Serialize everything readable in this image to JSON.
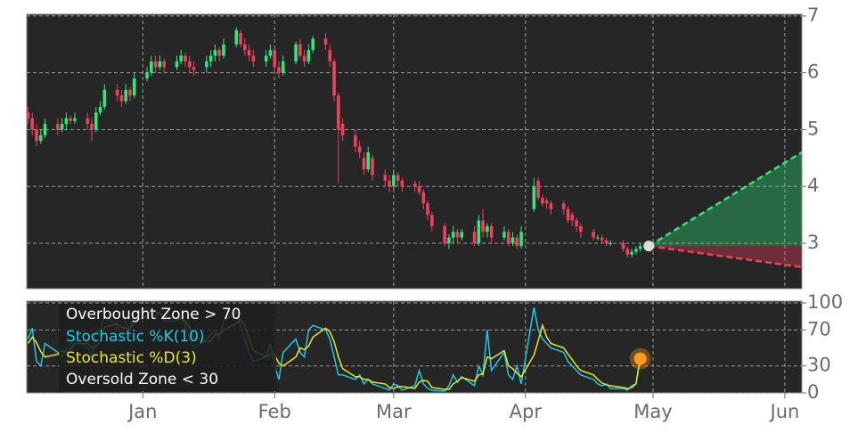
{
  "chart_data": [
    {
      "type": "candlestick",
      "x": [
        -27,
        -26,
        -25,
        -24,
        -23,
        -20,
        -19,
        -18,
        -17,
        -16,
        -13,
        -12,
        -11,
        -10,
        -9,
        -6,
        -5,
        -4,
        -3,
        -2,
        1,
        2,
        3,
        4,
        5,
        8,
        9,
        10,
        11,
        12,
        15,
        16,
        17,
        18,
        19,
        22,
        23,
        24,
        25,
        26,
        29,
        30,
        31,
        32,
        33,
        36,
        37,
        38,
        39,
        40,
        43,
        44,
        45,
        46,
        47,
        50,
        51,
        52,
        53,
        54,
        57,
        58,
        59,
        60,
        61,
        64,
        65,
        66,
        67,
        68,
        71,
        72,
        73,
        74,
        75,
        78,
        79,
        80,
        81,
        82,
        85,
        86,
        87,
        88,
        89,
        92,
        93,
        94,
        95,
        96,
        99,
        100,
        101,
        102,
        103,
        106,
        107,
        108,
        109,
        110,
        113,
        114,
        115,
        116,
        117
      ],
      "open": [
        5.3,
        5.2,
        5.0,
        4.8,
        4.9,
        5.1,
        5.0,
        5.1,
        5.2,
        5.15,
        5.2,
        5.1,
        5.0,
        5.3,
        5.4,
        5.7,
        5.6,
        5.5,
        5.7,
        5.6,
        5.9,
        6.0,
        6.2,
        6.1,
        6.2,
        6.1,
        6.2,
        6.3,
        6.2,
        6.1,
        6.1,
        6.2,
        6.3,
        6.4,
        6.3,
        6.5,
        6.7,
        6.5,
        6.4,
        6.3,
        6.2,
        6.3,
        6.4,
        6.1,
        6.0,
        6.2,
        6.5,
        6.3,
        6.2,
        6.4,
        6.6,
        6.4,
        6.2,
        5.6,
        5.1,
        4.9,
        4.7,
        4.5,
        4.3,
        4.5,
        4.2,
        4.1,
        4.0,
        4.2,
        4.1,
        4.05,
        4.0,
        3.9,
        3.7,
        3.5,
        3.3,
        3.0,
        3.1,
        3.2,
        3.1,
        3.2,
        3.0,
        3.4,
        3.2,
        3.3,
        3.1,
        3.2,
        3.0,
        3.1,
        2.95,
        3.6,
        4.1,
        3.8,
        3.75,
        3.7,
        3.7,
        3.6,
        3.5,
        3.4,
        3.3,
        3.2,
        3.1,
        3.1,
        3.05,
        3.0,
        3.0,
        2.9,
        2.8,
        2.85,
        2.9
      ],
      "high": [
        5.4,
        5.3,
        5.1,
        5.0,
        5.2,
        5.2,
        5.2,
        5.3,
        5.25,
        5.3,
        5.3,
        5.2,
        5.4,
        5.5,
        5.8,
        5.8,
        5.7,
        5.8,
        5.75,
        6.0,
        6.1,
        6.3,
        6.3,
        6.3,
        6.25,
        6.3,
        6.4,
        6.35,
        6.3,
        6.2,
        6.3,
        6.4,
        6.5,
        6.45,
        6.6,
        6.8,
        6.75,
        6.6,
        6.5,
        6.4,
        6.4,
        6.5,
        6.45,
        6.2,
        6.3,
        6.55,
        6.6,
        6.4,
        6.5,
        6.65,
        6.7,
        6.5,
        6.25,
        5.65,
        5.2,
        5.0,
        4.8,
        4.6,
        4.7,
        4.55,
        4.3,
        4.2,
        4.3,
        4.25,
        4.15,
        4.1,
        4.1,
        3.95,
        3.75,
        3.55,
        3.35,
        3.15,
        3.3,
        3.25,
        3.25,
        3.3,
        3.5,
        3.6,
        3.35,
        3.35,
        3.3,
        3.25,
        3.2,
        3.15,
        3.3,
        4.15,
        4.15,
        3.85,
        3.8,
        3.75,
        3.75,
        3.65,
        3.55,
        3.45,
        3.35,
        3.25,
        3.15,
        3.15,
        3.1,
        3.05,
        3.05,
        2.95,
        2.9,
        2.95,
        3.0
      ],
      "low": [
        5.1,
        4.9,
        4.7,
        4.75,
        4.85,
        4.9,
        4.95,
        5.0,
        5.1,
        5.1,
        5.0,
        4.8,
        4.95,
        5.25,
        5.35,
        5.5,
        5.4,
        5.45,
        5.5,
        5.55,
        5.85,
        5.95,
        6.0,
        6.05,
        6.0,
        6.05,
        6.15,
        6.1,
        6.0,
        5.95,
        6.0,
        6.1,
        6.2,
        6.2,
        6.25,
        6.45,
        6.45,
        6.3,
        6.2,
        6.1,
        6.1,
        6.25,
        6.0,
        5.9,
        5.95,
        6.15,
        6.25,
        6.1,
        6.15,
        6.35,
        6.4,
        6.1,
        5.5,
        4.05,
        4.8,
        4.6,
        4.5,
        4.2,
        4.25,
        4.1,
        4.0,
        3.9,
        3.95,
        4.0,
        3.9,
        3.9,
        3.85,
        3.6,
        3.4,
        3.2,
        2.95,
        2.9,
        3.0,
        3.0,
        3.05,
        2.95,
        2.95,
        3.1,
        3.1,
        3.0,
        3.05,
        2.95,
        2.95,
        2.9,
        2.9,
        3.55,
        3.75,
        3.65,
        3.6,
        3.5,
        3.5,
        3.35,
        3.3,
        3.2,
        3.1,
        3.05,
        3.05,
        3.0,
        2.95,
        2.95,
        2.85,
        2.75,
        2.75,
        2.8,
        2.85
      ],
      "close": [
        5.2,
        5.0,
        4.8,
        4.9,
        5.1,
        5.0,
        5.1,
        5.2,
        5.15,
        5.2,
        5.1,
        5.0,
        5.3,
        5.4,
        5.7,
        5.6,
        5.5,
        5.7,
        5.6,
        5.9,
        6.0,
        6.2,
        6.1,
        6.2,
        6.1,
        6.2,
        6.3,
        6.2,
        6.1,
        6.05,
        6.2,
        6.3,
        6.4,
        6.3,
        6.5,
        6.75,
        6.5,
        6.4,
        6.3,
        6.2,
        6.3,
        6.4,
        6.1,
        6.0,
        6.2,
        6.5,
        6.3,
        6.2,
        6.4,
        6.6,
        6.5,
        6.2,
        5.6,
        5.0,
        4.9,
        4.7,
        4.6,
        4.3,
        4.6,
        4.2,
        4.1,
        4.0,
        4.2,
        4.1,
        4.0,
        4.0,
        3.9,
        3.7,
        3.5,
        3.3,
        3.0,
        3.1,
        3.2,
        3.1,
        3.2,
        3.0,
        3.4,
        3.2,
        3.3,
        3.1,
        3.2,
        3.0,
        3.1,
        2.95,
        3.2,
        4.0,
        3.8,
        3.7,
        3.7,
        3.6,
        3.6,
        3.4,
        3.4,
        3.3,
        3.2,
        3.1,
        3.1,
        3.05,
        3.0,
        3.0,
        2.9,
        2.8,
        2.85,
        2.9,
        2.95
      ],
      "up_color": "#2ee87c",
      "down_color": "#f0405c",
      "xlim": [
        -27.3,
        155
      ],
      "ylim": [
        2.2,
        7.03
      ],
      "yticks": [
        3,
        4,
        5,
        6,
        7
      ],
      "grid": true,
      "forecast": {
        "x": [
          119,
          155
        ],
        "upper": [
          2.95,
          4.6
        ],
        "lower": [
          2.95,
          2.58
        ],
        "upper_color": "#2ee87c",
        "lower_color": "#f0405c",
        "point_color": "#dddddd"
      }
    },
    {
      "type": "line",
      "x": [
        -27,
        -26,
        -25,
        -24,
        -23,
        -20,
        -19,
        -18,
        -17,
        -16,
        -13,
        -12,
        -11,
        -10,
        -9,
        -6,
        -5,
        -4,
        -3,
        -2,
        1,
        2,
        3,
        4,
        5,
        8,
        9,
        10,
        11,
        12,
        15,
        16,
        17,
        18,
        19,
        22,
        23,
        24,
        25,
        26,
        29,
        30,
        31,
        32,
        33,
        36,
        37,
        38,
        39,
        40,
        43,
        44,
        45,
        46,
        47,
        50,
        51,
        52,
        53,
        54,
        57,
        58,
        59,
        60,
        61,
        64,
        65,
        66,
        67,
        68,
        71,
        72,
        73,
        74,
        75,
        78,
        79,
        80,
        81,
        82,
        85,
        86,
        87,
        88,
        89,
        92,
        93,
        94,
        95,
        96,
        99,
        100,
        101,
        102,
        103,
        106,
        107,
        108,
        109,
        110,
        113,
        114,
        115,
        116,
        117
      ],
      "series": [
        {
          "name": "Stochastic %K(10)",
          "color": "#1fc8e8",
          "values": [
            60,
            72,
            35,
            30,
            55,
            45,
            40,
            50,
            55,
            60,
            50,
            40,
            65,
            70,
            85,
            75,
            60,
            80,
            70,
            90,
            95,
            90,
            85,
            90,
            80,
            80,
            85,
            75,
            60,
            50,
            60,
            65,
            70,
            60,
            80,
            90,
            75,
            60,
            45,
            35,
            40,
            55,
            30,
            15,
            45,
            60,
            45,
            40,
            70,
            75,
            70,
            60,
            40,
            20,
            20,
            15,
            20,
            10,
            15,
            10,
            5,
            3,
            10,
            8,
            3,
            8,
            25,
            10,
            5,
            3,
            2,
            8,
            20,
            12,
            18,
            8,
            30,
            20,
            70,
            25,
            45,
            20,
            15,
            30,
            10,
            95,
            70,
            60,
            55,
            50,
            45,
            35,
            30,
            25,
            20,
            15,
            10,
            8,
            10,
            5,
            5,
            3,
            8,
            10,
            42
          ]
        },
        {
          "name": "Stochastic %D(3)",
          "color": "#e8e81f",
          "values": [
            55,
            62,
            56,
            46,
            40,
            43,
            47,
            45,
            48,
            55,
            55,
            50,
            52,
            58,
            73,
            77,
            73,
            72,
            70,
            80,
            85,
            92,
            90,
            88,
            85,
            83,
            82,
            80,
            73,
            62,
            57,
            58,
            65,
            65,
            70,
            77,
            82,
            75,
            60,
            47,
            40,
            43,
            42,
            33,
            30,
            40,
            50,
            48,
            52,
            62,
            72,
            68,
            57,
            40,
            27,
            18,
            18,
            15,
            15,
            12,
            10,
            6,
            5,
            7,
            7,
            5,
            12,
            14,
            13,
            6,
            4,
            4,
            10,
            13,
            17,
            13,
            20,
            21,
            40,
            38,
            47,
            30,
            27,
            22,
            18,
            42,
            58,
            75,
            62,
            55,
            50,
            43,
            37,
            30,
            25,
            20,
            15,
            11,
            9,
            8,
            6,
            5,
            6,
            10,
            38
          ]
        }
      ],
      "overbought_label": "Overbought Zone > 70",
      "oversold_label": "Oversold Zone < 30",
      "marker": {
        "x": 117,
        "value": 38,
        "color": "#ff9a1a"
      },
      "xlim": [
        -27.3,
        155
      ],
      "xticks": [
        {
          "value": 0,
          "label": "Jan"
        },
        {
          "value": 31,
          "label": "Feb"
        },
        {
          "value": 59,
          "label": "Mar"
        },
        {
          "value": 90,
          "label": "Apr"
        },
        {
          "value": 120,
          "label": "May"
        },
        {
          "value": 151,
          "label": "Jun"
        }
      ],
      "ylim": [
        0,
        102
      ],
      "yticks": [
        0,
        30,
        70,
        100
      ],
      "grid": true
    }
  ]
}
